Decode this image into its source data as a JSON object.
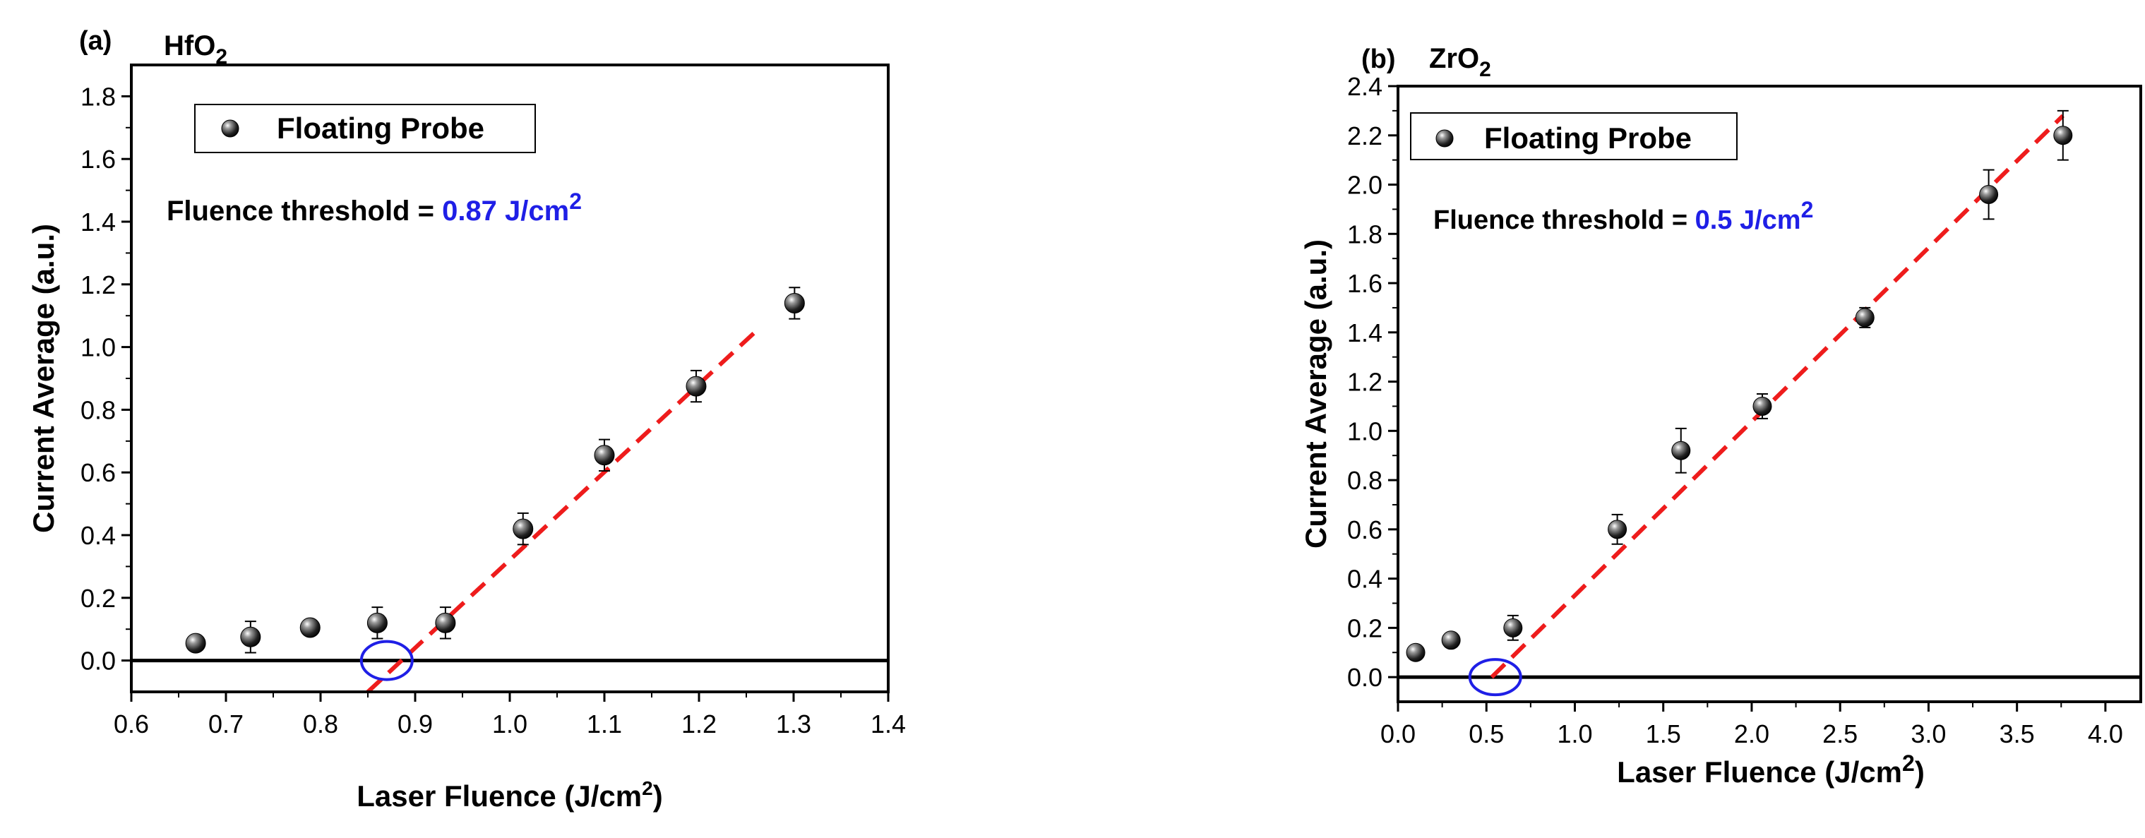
{
  "chart_data": [
    {
      "type": "scatter",
      "panel_label": "(a)",
      "material": {
        "base": "HfO",
        "sub": "2"
      },
      "xlabel": {
        "text": "Laser Fluence (J/cm",
        "sup": "2",
        "close": ")"
      },
      "ylabel": "Current Average (a.u.)",
      "xlim": [
        0.6,
        1.4
      ],
      "ylim": [
        -0.1,
        1.9
      ],
      "xticks": [
        "0.6",
        "0.7",
        "0.8",
        "0.9",
        "1.0",
        "1.1",
        "1.2",
        "1.3",
        "1.4"
      ],
      "yticks": [
        "0.0",
        "0.2",
        "0.4",
        "0.6",
        "0.8",
        "1.0",
        "1.2",
        "1.4",
        "1.6",
        "1.8"
      ],
      "legend": "Floating Probe",
      "annotation": {
        "prefix": "Fluence threshold = ",
        "value": "0.87 J/cm",
        "sup": "2"
      },
      "series": [
        {
          "name": "Floating Probe",
          "x": [
            0.668,
            0.726,
            0.789,
            0.86,
            0.932,
            1.014,
            1.1,
            1.197,
            1.301
          ],
          "y": [
            0.055,
            0.075,
            0.105,
            0.12,
            0.12,
            0.42,
            0.655,
            0.875,
            1.14
          ],
          "err": [
            0.01,
            0.05,
            0.01,
            0.05,
            0.05,
            0.05,
            0.05,
            0.05,
            0.05
          ]
        }
      ],
      "fit_line": {
        "x": [
          0.85,
          1.26
        ],
        "y": [
          -0.1,
          1.05
        ]
      },
      "baseline_y": 0.0,
      "threshold_marker": {
        "x": 0.87,
        "y": 0.0
      }
    },
    {
      "type": "scatter",
      "panel_label": "(b)",
      "material": {
        "base": "ZrO",
        "sub": "2"
      },
      "xlabel": {
        "text": "Laser Fluence (J/cm",
        "sup": "2",
        "close": ")"
      },
      "ylabel": "Current Average (a.u.)",
      "xlim": [
        0.0,
        4.2
      ],
      "ylim": [
        -0.1,
        2.4
      ],
      "xticks": [
        "0.0",
        "0.5",
        "1.0",
        "1.5",
        "2.0",
        "2.5",
        "3.0",
        "3.5",
        "4.0"
      ],
      "yticks": [
        "0.0",
        "0.2",
        "0.4",
        "0.6",
        "0.8",
        "1.0",
        "1.2",
        "1.4",
        "1.6",
        "1.8",
        "2.0",
        "2.2",
        "2.4"
      ],
      "legend": "Floating Probe",
      "annotation": {
        "prefix": "Fluence threshold = ",
        "value": "0.5 J/cm",
        "sup": "2"
      },
      "series": [
        {
          "name": "Floating Probe",
          "x": [
            0.1,
            0.3,
            0.65,
            1.24,
            1.6,
            2.06,
            2.64,
            3.34,
            3.76
          ],
          "y": [
            0.1,
            0.15,
            0.2,
            0.6,
            0.92,
            1.1,
            1.46,
            1.96,
            2.2
          ],
          "err": [
            0.01,
            0.01,
            0.05,
            0.06,
            0.09,
            0.05,
            0.04,
            0.1,
            0.1
          ]
        }
      ],
      "fit_line": {
        "x": [
          0.53,
          3.76
        ],
        "y": [
          0.0,
          2.28
        ]
      },
      "baseline_y": 0.0,
      "threshold_marker": {
        "x": 0.55,
        "y": 0.0
      }
    }
  ]
}
